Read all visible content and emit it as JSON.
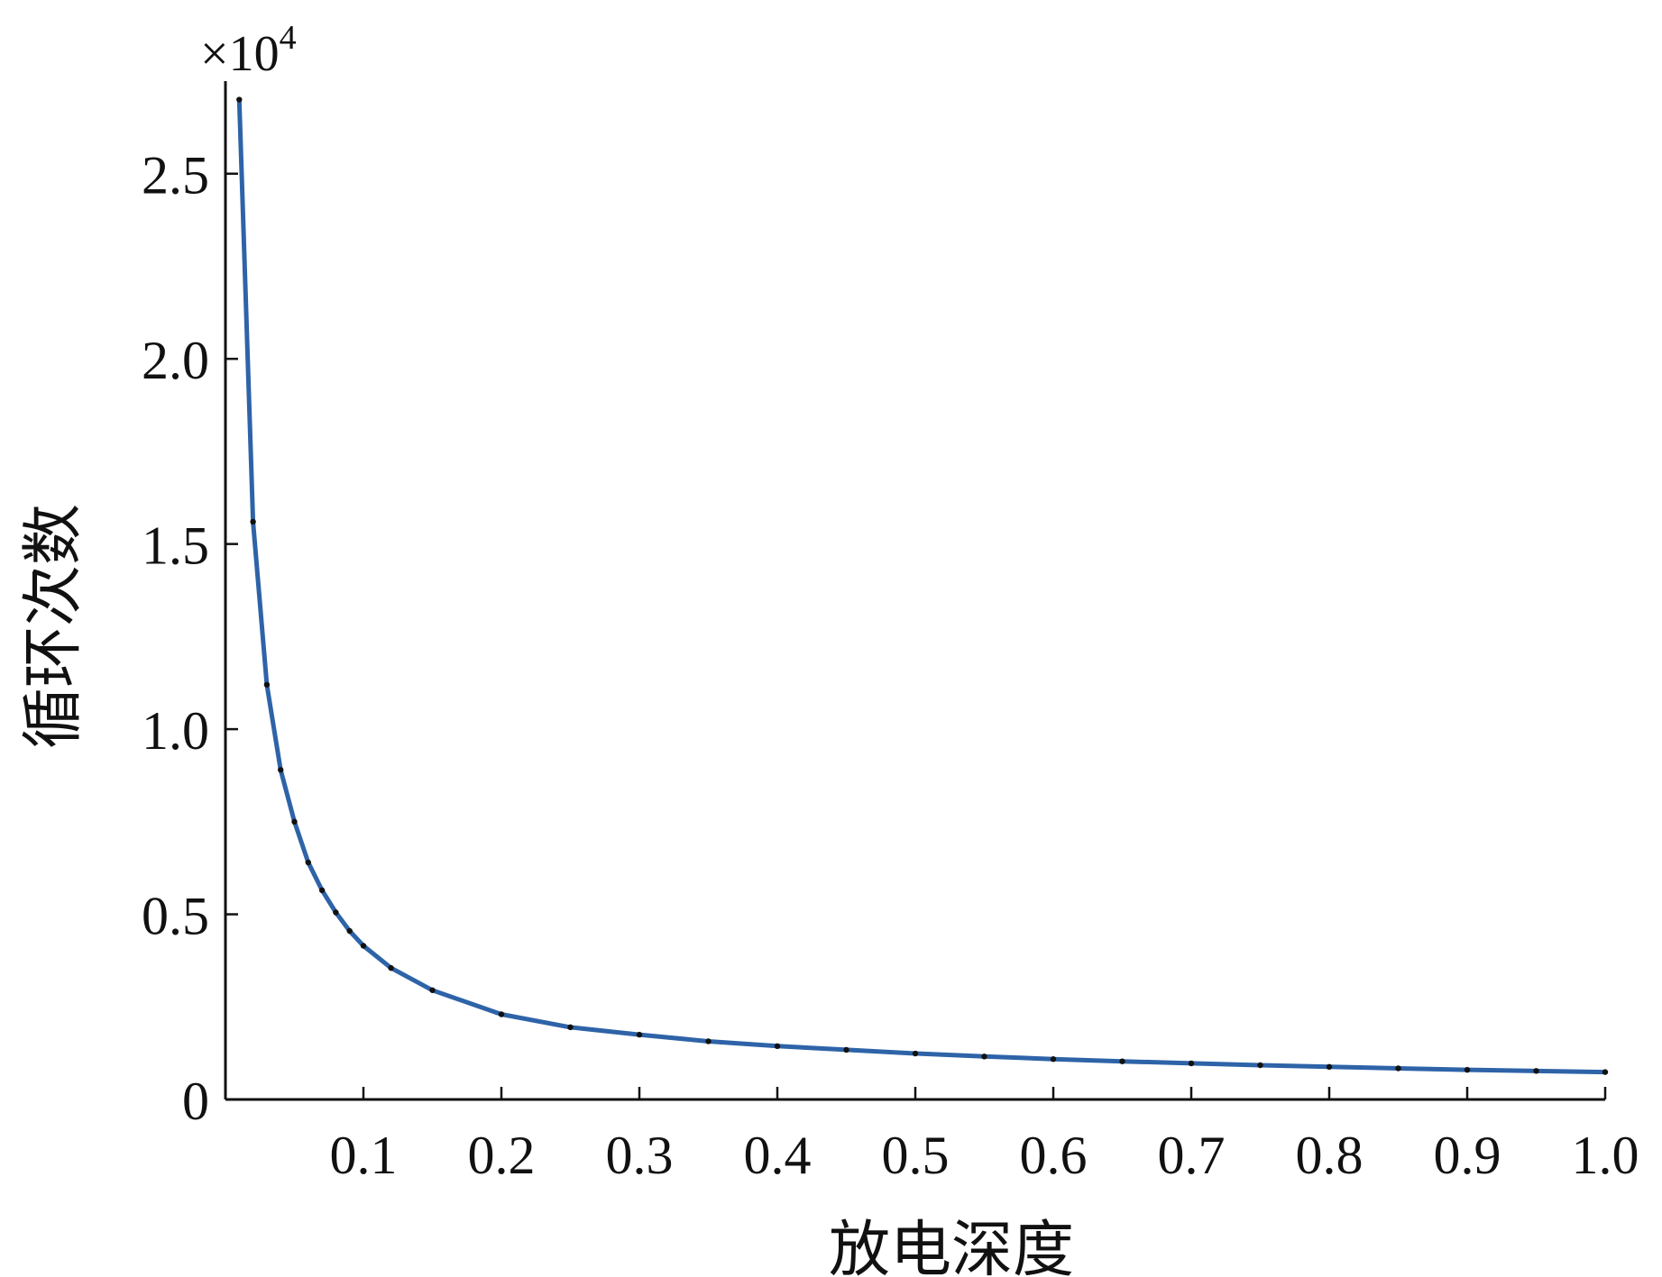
{
  "chart_data": {
    "type": "line",
    "title": "",
    "xlabel": "放电深度",
    "ylabel": "循环次数",
    "y_multiplier_label": "×10",
    "y_multiplier_exponent": "4",
    "xlim": [
      0,
      1.0
    ],
    "ylim": [
      0,
      27500
    ],
    "grid": false,
    "x_ticks": [
      0.1,
      0.2,
      0.3,
      0.4,
      0.5,
      0.6,
      0.7,
      0.8,
      0.9,
      1.0
    ],
    "x_tick_labels": [
      "0.1",
      "0.2",
      "0.3",
      "0.4",
      "0.5",
      "0.6",
      "0.7",
      "0.8",
      "0.9",
      "1.0"
    ],
    "y_ticks": [
      0,
      5000,
      10000,
      15000,
      20000,
      25000
    ],
    "y_tick_labels": [
      "0",
      "0.5",
      "1.0",
      "1.5",
      "2.0",
      "2.5"
    ],
    "line_color": "#2e63a8",
    "marker_color": "#111111",
    "series": [
      {
        "x": [
          0.01,
          0.02,
          0.03,
          0.04,
          0.05,
          0.06,
          0.07,
          0.08,
          0.09,
          0.1,
          0.12,
          0.15,
          0.2,
          0.25,
          0.3,
          0.35,
          0.4,
          0.45,
          0.5,
          0.55,
          0.6,
          0.65,
          0.7,
          0.75,
          0.8,
          0.85,
          0.9,
          0.95,
          1.0
        ],
        "y": [
          27000,
          15600,
          11200,
          8900,
          7500,
          6400,
          5650,
          5050,
          4550,
          4150,
          3550,
          2950,
          2300,
          1950,
          1750,
          1570,
          1440,
          1340,
          1240,
          1160,
          1090,
          1030,
          975,
          925,
          880,
          840,
          800,
          770,
          740
        ]
      }
    ]
  }
}
